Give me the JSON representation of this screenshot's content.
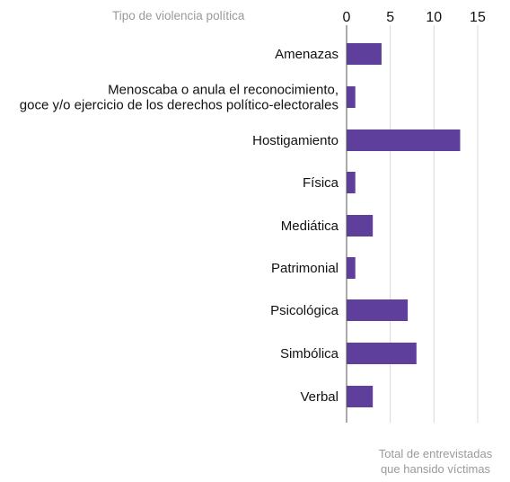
{
  "chart_data": {
    "type": "bar",
    "orientation": "horizontal",
    "title": "Tipo de violencia política",
    "xlabel": [
      "Total de entrevistadas",
      "que hansido víctimas"
    ],
    "ylabel": "",
    "xlim": [
      0,
      15
    ],
    "xticks": [
      "0",
      "5",
      "10",
      "15"
    ],
    "categories": [
      [
        "Amenazas"
      ],
      [
        "Menoscaba o anula el reconocimiento,",
        "goce y/o ejercicio de los derechos político-electorales"
      ],
      [
        "Hostigamiento"
      ],
      [
        "Física"
      ],
      [
        "Mediática"
      ],
      [
        "Patrimonial"
      ],
      [
        "Psicológica"
      ],
      [
        "Simbólica"
      ],
      [
        "Verbal"
      ]
    ],
    "values": [
      4,
      1,
      13,
      1,
      3,
      1,
      7,
      8,
      3
    ],
    "grid": true,
    "legend": "none",
    "colors": {
      "bar": "#5e3f9c",
      "grid": "#d9d9d9",
      "axis": "#555555"
    }
  }
}
